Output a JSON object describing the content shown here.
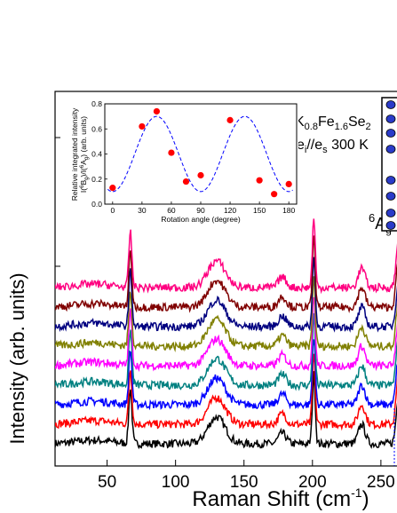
{
  "chart_data": [
    {
      "type": "line",
      "xlabel_parts": [
        "Raman Shift (cm",
        "-1",
        ")"
      ],
      "ylabel": "Intensity (arb. units)",
      "x_ticks": [
        50,
        100,
        150,
        200,
        250
      ],
      "xlim": [
        12,
        265
      ],
      "y_ticks_labeled": false,
      "annotations": {
        "sample_parts": [
          "K",
          "0.8",
          "Fe",
          "1.6",
          "Se",
          "2"
        ],
        "polarization_parts": [
          "e",
          "i",
          "//e",
          "s",
          " 300 K"
        ],
        "mode_parts": [
          "6",
          "A",
          "g"
        ]
      },
      "series": [
        {
          "color": "#000000",
          "offset": 0
        },
        {
          "color": "#ff0000",
          "offset": 1
        },
        {
          "color": "#0000ff",
          "offset": 2
        },
        {
          "color": "#008080",
          "offset": 3
        },
        {
          "color": "#ff00ff",
          "offset": 4
        },
        {
          "color": "#808000",
          "offset": 5
        },
        {
          "color": "#000080",
          "offset": 6
        },
        {
          "color": "#800000",
          "offset": 7
        },
        {
          "color": "#ff0080",
          "offset": 8
        }
      ],
      "peaks_cm-1": [
        67,
        130,
        178,
        201,
        236,
        263
      ]
    },
    {
      "type": "scatter",
      "role": "inset",
      "xlabel": "Rotation angle (degree)",
      "ylabel_line1": "Relative integrated intensity",
      "ylabel_line2_parts": [
        "I(",
        "6",
        "B",
        "g",
        ")/I(",
        "6",
        "A",
        "g",
        ") (arb. units)"
      ],
      "x_ticks": [
        0,
        30,
        60,
        90,
        120,
        150,
        180
      ],
      "y_ticks": [
        0.0,
        0.2,
        0.4,
        0.6,
        0.8
      ],
      "xlim": [
        -8,
        188
      ],
      "ylim": [
        0.0,
        0.8
      ],
      "points": {
        "x": [
          0,
          30,
          45,
          60,
          75,
          90,
          120,
          150,
          165,
          180
        ],
        "y": [
          0.13,
          0.62,
          0.74,
          0.41,
          0.18,
          0.23,
          0.67,
          0.19,
          0.08,
          0.16
        ]
      },
      "point_color": "#ff0000",
      "fit_color": "#0000ff",
      "fit": {
        "mean": 0.4,
        "amplitude": 0.3,
        "phase_deg": 45
      }
    }
  ]
}
